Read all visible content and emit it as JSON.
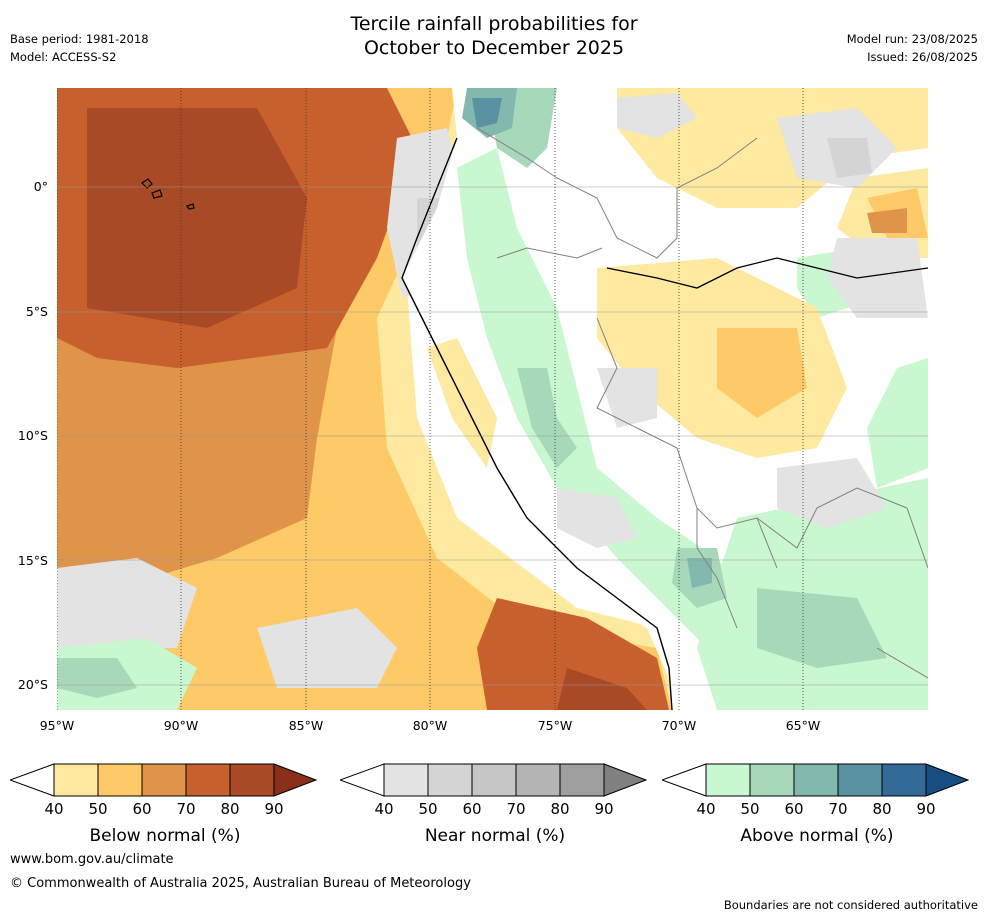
{
  "header": {
    "title_line1": "Tercile rainfall probabilities for",
    "title_line2": "October to December 2025",
    "base_period": "Base period: 1981-2018",
    "model": "Model: ACCESS-S2",
    "model_run": "Model run: 23/08/2025",
    "issued": "Issued: 26/08/2025"
  },
  "map": {
    "lat_labels": [
      "0°",
      "5°S",
      "10°S",
      "15°S",
      "20°S"
    ],
    "lon_labels": [
      "95°W",
      "90°W",
      "85°W",
      "80°W",
      "75°W",
      "70°W",
      "65°W"
    ],
    "lon_range": [
      -95,
      -60
    ],
    "lat_range": [
      -21,
      4
    ]
  },
  "legends": [
    {
      "caption": "Below normal (%)",
      "ticks": [
        "40",
        "50",
        "60",
        "70",
        "80",
        "90"
      ],
      "colors": [
        "#ffffff",
        "#fee9a0",
        "#fdca67",
        "#e0944a",
        "#c8602e",
        "#a84a25",
        "#8a2f1a"
      ]
    },
    {
      "caption": "Near normal (%)",
      "ticks": [
        "40",
        "50",
        "60",
        "70",
        "80",
        "90"
      ],
      "colors": [
        "#ffffff",
        "#e3e3e3",
        "#d4d4d4",
        "#c6c6c6",
        "#b4b4b4",
        "#9f9f9f",
        "#808080"
      ]
    },
    {
      "caption": "Above normal (%)",
      "ticks": [
        "40",
        "50",
        "60",
        "70",
        "80",
        "90"
      ],
      "colors": [
        "#ffffff",
        "#c9f7cf",
        "#a7d8ba",
        "#82b8ae",
        "#5a92a2",
        "#336b96",
        "#164d82"
      ]
    }
  ],
  "footer": {
    "website": "www.bom.gov.au/climate",
    "copyright": "© Commonwealth of Australia 2025, Australian Bureau of Meteorology",
    "disclaimer": "Boundaries are not considered authoritative"
  }
}
